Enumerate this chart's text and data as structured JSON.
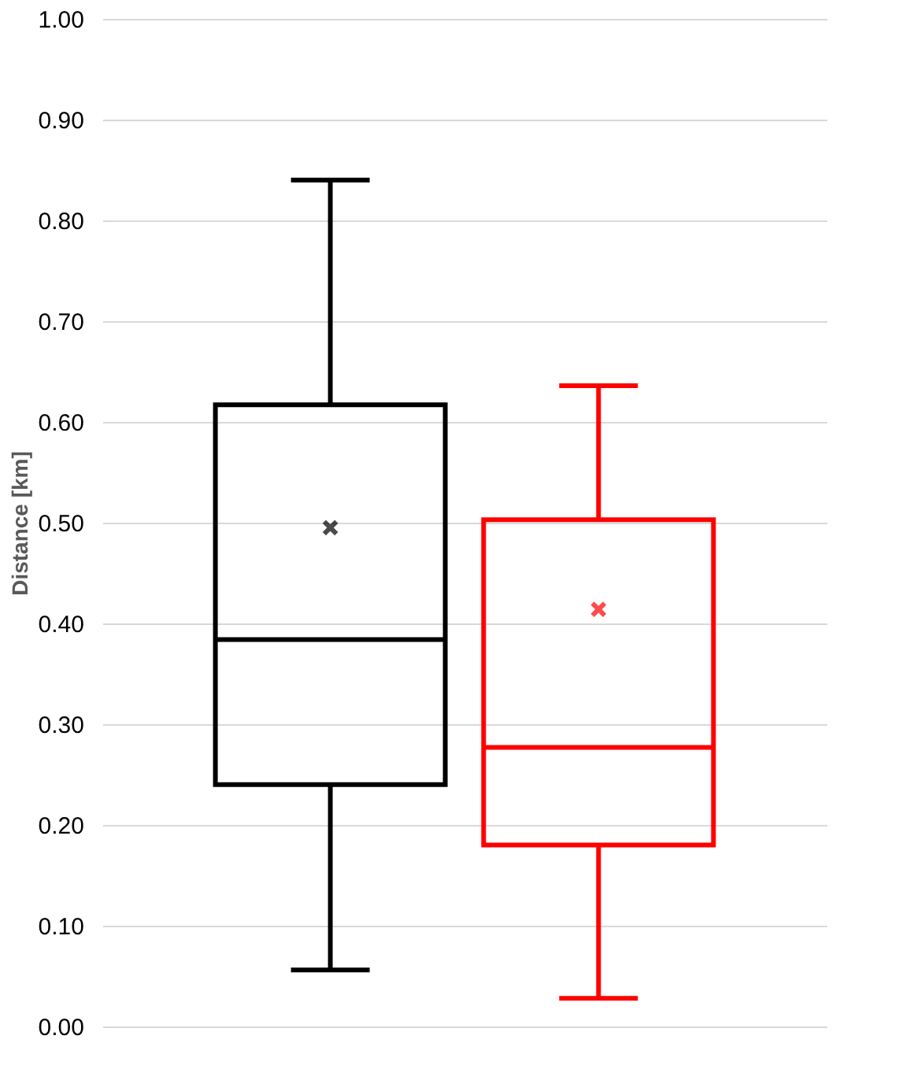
{
  "chart_data": {
    "type": "box",
    "ylabel": "Distance [km]",
    "categories": [
      null,
      null
    ],
    "boxes": [
      {
        "low": 0.056,
        "q1": 0.24,
        "median": 0.384,
        "q3": 0.617,
        "high": 0.84,
        "mean": 0.495
      },
      {
        "low": 0.028,
        "q1": 0.18,
        "median": 0.277,
        "q3": 0.503,
        "high": 0.636,
        "mean": 0.414
      }
    ],
    "colors": [
      "#000000",
      "#ff0000"
    ],
    "ylim": [
      0,
      1
    ],
    "yticks": [
      {
        "value": 0,
        "label": "0.00"
      },
      {
        "value": 0.1,
        "label": "0.10"
      },
      {
        "value": 0.2,
        "label": "0.20"
      },
      {
        "value": 0.3,
        "label": "0.30"
      },
      {
        "value": 0.4,
        "label": "0.40"
      },
      {
        "value": 0.5,
        "label": "0.50"
      },
      {
        "value": 0.6,
        "label": "0.60"
      },
      {
        "value": 0.7,
        "label": "0.70"
      },
      {
        "value": 0.8,
        "label": "0.80"
      },
      {
        "value": 0.9,
        "label": "0.90"
      },
      {
        "value": 1,
        "label": "1.00"
      }
    ],
    "grid": "y",
    "tick_labels": "y",
    "legend": false
  }
}
